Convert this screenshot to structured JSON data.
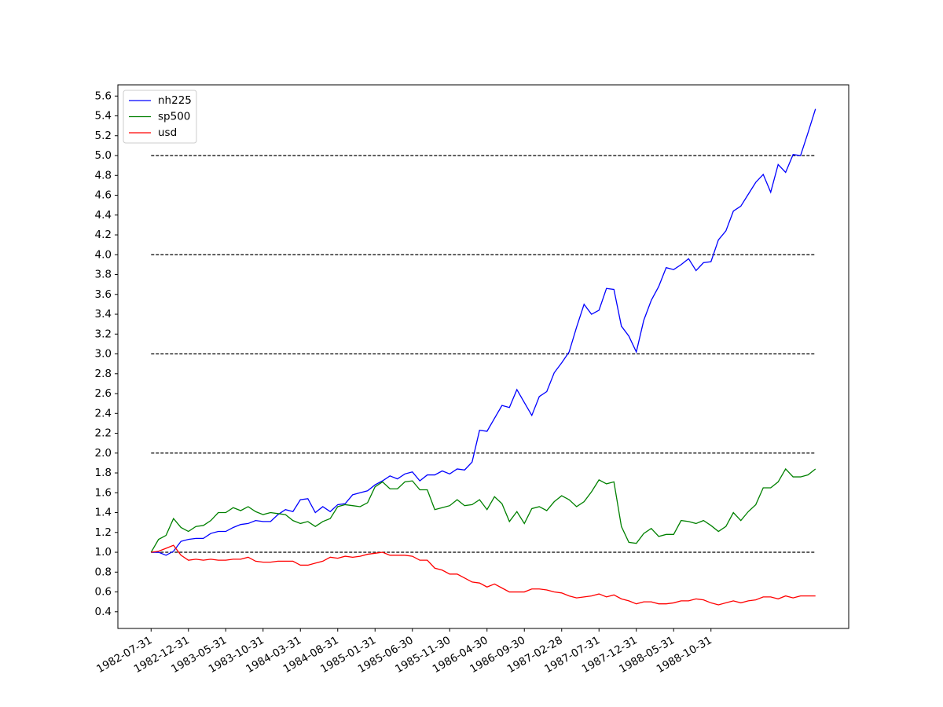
{
  "chart_data": {
    "type": "line",
    "categories": [
      "1982-07-31",
      null,
      null,
      null,
      null,
      "1982-12-31",
      null,
      null,
      null,
      null,
      "1983-05-31",
      null,
      null,
      null,
      null,
      "1983-10-31",
      null,
      null,
      null,
      null,
      "1984-03-31",
      null,
      null,
      null,
      null,
      "1984-08-31",
      null,
      null,
      null,
      null,
      "1985-01-31",
      null,
      null,
      null,
      null,
      "1985-06-30",
      null,
      null,
      null,
      null,
      "1985-11-30",
      null,
      null,
      null,
      null,
      "1986-04-30",
      null,
      null,
      null,
      null,
      "1986-09-30",
      null,
      null,
      null,
      null,
      "1987-02-28",
      null,
      null,
      null,
      null,
      "1987-07-31",
      null,
      null,
      null,
      null,
      "1987-12-31",
      null,
      null,
      null,
      null,
      "1988-05-31",
      null,
      null,
      null,
      null,
      "1988-10-31",
      null,
      null,
      null,
      null,
      null,
      null,
      null,
      null,
      null,
      null,
      null,
      null,
      null,
      null
    ],
    "series": [
      {
        "name": "nh225",
        "color": "#0000ff",
        "values": [
          1.0,
          1.0,
          0.97,
          1.01,
          1.11,
          1.13,
          1.14,
          1.14,
          1.19,
          1.21,
          1.21,
          1.25,
          1.28,
          1.29,
          1.32,
          1.31,
          1.31,
          1.38,
          1.43,
          1.41,
          1.53,
          1.54,
          1.4,
          1.46,
          1.41,
          1.48,
          1.49,
          1.58,
          1.6,
          1.62,
          1.68,
          1.72,
          1.77,
          1.74,
          1.79,
          1.81,
          1.72,
          1.78,
          1.78,
          1.82,
          1.79,
          1.84,
          1.83,
          1.91,
          2.23,
          2.22,
          2.35,
          2.48,
          2.46,
          2.64,
          2.51,
          2.38,
          2.57,
          2.62,
          2.81,
          2.91,
          3.02,
          3.27,
          3.5,
          3.4,
          3.44,
          3.66,
          3.65,
          3.28,
          3.18,
          3.02,
          3.34,
          3.54,
          3.68,
          3.87,
          3.85,
          3.9,
          3.96,
          3.84,
          3.92,
          3.93,
          4.15,
          4.24,
          4.44,
          4.49,
          4.61,
          4.73,
          4.81,
          4.63,
          4.91,
          4.83,
          5.01,
          5.0,
          5.23,
          5.47
        ]
      },
      {
        "name": "sp500",
        "color": "#008000",
        "values": [
          1.0,
          1.13,
          1.17,
          1.34,
          1.25,
          1.21,
          1.26,
          1.27,
          1.32,
          1.4,
          1.4,
          1.45,
          1.42,
          1.46,
          1.41,
          1.38,
          1.4,
          1.39,
          1.38,
          1.32,
          1.29,
          1.31,
          1.26,
          1.31,
          1.34,
          1.46,
          1.48,
          1.47,
          1.46,
          1.5,
          1.66,
          1.71,
          1.64,
          1.64,
          1.71,
          1.72,
          1.63,
          1.63,
          1.43,
          1.45,
          1.47,
          1.53,
          1.47,
          1.48,
          1.53,
          1.43,
          1.56,
          1.49,
          1.31,
          1.41,
          1.29,
          1.44,
          1.46,
          1.42,
          1.51,
          1.57,
          1.53,
          1.46,
          1.51,
          1.61,
          1.73,
          1.69,
          1.71,
          1.26,
          1.1,
          1.09,
          1.19,
          1.24,
          1.16,
          1.18,
          1.18,
          1.32,
          1.31,
          1.29,
          1.32,
          1.27,
          1.21,
          1.26,
          1.4,
          1.32,
          1.41,
          1.48,
          1.65,
          1.65,
          1.71,
          1.84,
          1.76,
          1.76,
          1.78,
          1.84
        ]
      },
      {
        "name": "usd",
        "color": "#ff0000",
        "values": [
          1.0,
          1.01,
          1.04,
          1.07,
          0.97,
          0.92,
          0.93,
          0.92,
          0.93,
          0.92,
          0.92,
          0.93,
          0.93,
          0.95,
          0.91,
          0.9,
          0.9,
          0.91,
          0.91,
          0.91,
          0.87,
          0.87,
          0.89,
          0.91,
          0.95,
          0.94,
          0.96,
          0.95,
          0.96,
          0.98,
          0.99,
          1.0,
          0.97,
          0.97,
          0.97,
          0.96,
          0.92,
          0.92,
          0.84,
          0.82,
          0.78,
          0.78,
          0.74,
          0.7,
          0.69,
          0.65,
          0.68,
          0.64,
          0.6,
          0.6,
          0.6,
          0.63,
          0.63,
          0.62,
          0.6,
          0.59,
          0.56,
          0.54,
          0.55,
          0.56,
          0.58,
          0.55,
          0.57,
          0.53,
          0.51,
          0.48,
          0.5,
          0.5,
          0.48,
          0.48,
          0.49,
          0.51,
          0.51,
          0.53,
          0.52,
          0.49,
          0.47,
          0.49,
          0.51,
          0.49,
          0.51,
          0.52,
          0.55,
          0.55,
          0.53,
          0.56,
          0.54,
          0.56,
          0.56,
          0.56
        ]
      }
    ],
    "hlines": [
      1,
      2,
      3,
      4,
      5
    ],
    "ylim": [
      0.232,
      5.713
    ],
    "yticks": [
      0.4,
      0.6,
      0.8,
      {
        "value": 1.0,
        "label": "1.0"
      },
      1.2,
      1.4,
      1.6,
      1.8,
      {
        "value": 2.0,
        "label": "2.0"
      },
      2.2,
      2.4,
      2.6,
      2.8,
      {
        "value": 3.0,
        "label": "3.0"
      },
      3.2,
      3.4,
      3.6,
      3.8,
      {
        "value": 4.0,
        "label": "4.0"
      },
      4.2,
      4.4,
      4.6,
      4.8,
      {
        "value": 5.0,
        "label": "5.0"
      },
      5.2,
      5.4,
      5.6
    ],
    "legend": "upper left"
  }
}
